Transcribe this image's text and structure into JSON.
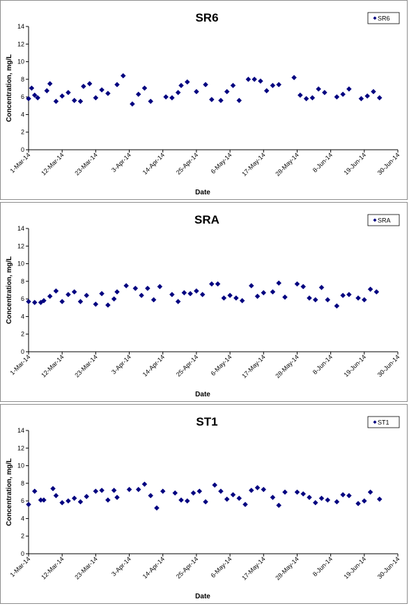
{
  "chart_data": [
    {
      "type": "scatter",
      "title": "SR6",
      "xlabel": "Date",
      "ylabel": "Concentration, mg/L",
      "ylim": [
        0,
        14
      ],
      "yticks": [
        "0",
        "2",
        "4",
        "6",
        "8",
        "10",
        "12",
        "14"
      ],
      "xticks": [
        "1-Mar-14",
        "12-Mar-14",
        "23-Mar-14",
        "3-Apr-14",
        "14-Apr-14",
        "25-Apr-14",
        "6-May-14",
        "17-May-14",
        "28-May-14",
        "8-Jun-14",
        "19-Jun-14",
        "30-Jun-14"
      ],
      "legend_position": "top-right",
      "marker_color": "#000080",
      "series": [
        {
          "name": "SR6",
          "points": [
            [
              "2014-03-01",
              5.8
            ],
            [
              "2014-03-02",
              7.0
            ],
            [
              "2014-03-03",
              6.2
            ],
            [
              "2014-03-04",
              5.9
            ],
            [
              "2014-03-07",
              6.7
            ],
            [
              "2014-03-08",
              7.5
            ],
            [
              "2014-03-10",
              5.5
            ],
            [
              "2014-03-12",
              6.1
            ],
            [
              "2014-03-14",
              6.5
            ],
            [
              "2014-03-16",
              5.6
            ],
            [
              "2014-03-18",
              5.5
            ],
            [
              "2014-03-19",
              7.2
            ],
            [
              "2014-03-21",
              7.5
            ],
            [
              "2014-03-23",
              5.9
            ],
            [
              "2014-03-25",
              6.8
            ],
            [
              "2014-03-27",
              6.4
            ],
            [
              "2014-03-30",
              7.4
            ],
            [
              "2014-04-01",
              8.4
            ],
            [
              "2014-04-04",
              5.2
            ],
            [
              "2014-04-06",
              6.3
            ],
            [
              "2014-04-08",
              7.0
            ],
            [
              "2014-04-10",
              5.5
            ],
            [
              "2014-04-15",
              6.0
            ],
            [
              "2014-04-17",
              5.9
            ],
            [
              "2014-04-19",
              6.5
            ],
            [
              "2014-04-20",
              7.3
            ],
            [
              "2014-04-22",
              7.7
            ],
            [
              "2014-04-25",
              6.6
            ],
            [
              "2014-04-28",
              7.4
            ],
            [
              "2014-04-30",
              5.7
            ],
            [
              "2014-05-03",
              5.6
            ],
            [
              "2014-05-05",
              6.6
            ],
            [
              "2014-05-07",
              7.3
            ],
            [
              "2014-05-09",
              5.6
            ],
            [
              "2014-05-12",
              8.0
            ],
            [
              "2014-05-14",
              8.0
            ],
            [
              "2014-05-16",
              7.8
            ],
            [
              "2014-05-18",
              6.7
            ],
            [
              "2014-05-20",
              7.3
            ],
            [
              "2014-05-22",
              7.4
            ],
            [
              "2014-05-27",
              8.2
            ],
            [
              "2014-05-29",
              6.2
            ],
            [
              "2014-05-31",
              5.8
            ],
            [
              "2014-06-02",
              5.9
            ],
            [
              "2014-06-04",
              6.9
            ],
            [
              "2014-06-06",
              6.5
            ],
            [
              "2014-06-10",
              6.0
            ],
            [
              "2014-06-12",
              6.3
            ],
            [
              "2014-06-14",
              6.9
            ],
            [
              "2014-06-18",
              5.8
            ],
            [
              "2014-06-20",
              6.1
            ],
            [
              "2014-06-22",
              6.6
            ],
            [
              "2014-06-24",
              5.9
            ]
          ]
        }
      ]
    },
    {
      "type": "scatter",
      "title": "SRA",
      "xlabel": "Date",
      "ylabel": "Concentration, mg/L",
      "ylim": [
        0,
        14
      ],
      "yticks": [
        "0",
        "2",
        "4",
        "6",
        "8",
        "10",
        "12",
        "14"
      ],
      "xticks": [
        "1-Mar-14",
        "12-Mar-14",
        "23-Mar-14",
        "3-Apr-14",
        "14-Apr-14",
        "25-Apr-14",
        "6-May-14",
        "17-May-14",
        "28-May-14",
        "8-Jun-14",
        "19-Jun-14",
        "30-Jun-14"
      ],
      "legend_position": "top-right",
      "marker_color": "#000080",
      "series": [
        {
          "name": "SRA",
          "points": [
            [
              "2014-03-01",
              5.7
            ],
            [
              "2014-03-03",
              5.6
            ],
            [
              "2014-03-05",
              5.6
            ],
            [
              "2014-03-06",
              5.8
            ],
            [
              "2014-03-08",
              6.3
            ],
            [
              "2014-03-10",
              6.9
            ],
            [
              "2014-03-12",
              5.7
            ],
            [
              "2014-03-14",
              6.5
            ],
            [
              "2014-03-16",
              6.8
            ],
            [
              "2014-03-18",
              5.7
            ],
            [
              "2014-03-20",
              6.4
            ],
            [
              "2014-03-23",
              5.4
            ],
            [
              "2014-03-25",
              6.6
            ],
            [
              "2014-03-27",
              5.3
            ],
            [
              "2014-03-29",
              6.0
            ],
            [
              "2014-03-30",
              6.8
            ],
            [
              "2014-04-02",
              7.5
            ],
            [
              "2014-04-05",
              7.2
            ],
            [
              "2014-04-07",
              6.4
            ],
            [
              "2014-04-09",
              7.2
            ],
            [
              "2014-04-11",
              5.9
            ],
            [
              "2014-04-13",
              7.4
            ],
            [
              "2014-04-17",
              6.5
            ],
            [
              "2014-04-19",
              5.7
            ],
            [
              "2014-04-21",
              6.7
            ],
            [
              "2014-04-23",
              6.6
            ],
            [
              "2014-04-25",
              6.9
            ],
            [
              "2014-04-27",
              6.5
            ],
            [
              "2014-04-30",
              7.7
            ],
            [
              "2014-05-02",
              7.7
            ],
            [
              "2014-05-04",
              6.1
            ],
            [
              "2014-05-06",
              6.4
            ],
            [
              "2014-05-08",
              6.1
            ],
            [
              "2014-05-10",
              5.8
            ],
            [
              "2014-05-13",
              7.5
            ],
            [
              "2014-05-15",
              6.3
            ],
            [
              "2014-05-17",
              6.7
            ],
            [
              "2014-05-20",
              6.8
            ],
            [
              "2014-05-22",
              7.8
            ],
            [
              "2014-05-24",
              6.2
            ],
            [
              "2014-05-28",
              7.7
            ],
            [
              "2014-05-30",
              7.4
            ],
            [
              "2014-06-01",
              6.1
            ],
            [
              "2014-06-03",
              5.9
            ],
            [
              "2014-06-05",
              7.3
            ],
            [
              "2014-06-07",
              5.9
            ],
            [
              "2014-06-10",
              5.2
            ],
            [
              "2014-06-12",
              6.4
            ],
            [
              "2014-06-14",
              6.5
            ],
            [
              "2014-06-17",
              6.1
            ],
            [
              "2014-06-19",
              5.9
            ],
            [
              "2014-06-21",
              7.1
            ],
            [
              "2014-06-23",
              6.8
            ]
          ]
        }
      ]
    },
    {
      "type": "scatter",
      "title": "ST1",
      "xlabel": "Date",
      "ylabel": "Concentration, mg/L",
      "ylim": [
        0,
        14
      ],
      "yticks": [
        "0",
        "2",
        "4",
        "6",
        "8",
        "10",
        "12",
        "14"
      ],
      "xticks": [
        "1-Mar-14",
        "12-Mar-14",
        "23-Mar-14",
        "3-Apr-14",
        "14-Apr-14",
        "25-Apr-14",
        "6-May-14",
        "17-May-14",
        "28-May-14",
        "8-Jun-14",
        "19-Jun-14",
        "30-Jun-14"
      ],
      "legend_position": "top-right",
      "marker_color": "#000080",
      "series": [
        {
          "name": "ST1",
          "points": [
            [
              "2014-03-01",
              5.6
            ],
            [
              "2014-03-03",
              7.1
            ],
            [
              "2014-03-05",
              6.1
            ],
            [
              "2014-03-06",
              6.1
            ],
            [
              "2014-03-09",
              7.4
            ],
            [
              "2014-03-10",
              6.6
            ],
            [
              "2014-03-12",
              5.8
            ],
            [
              "2014-03-14",
              6.0
            ],
            [
              "2014-03-16",
              6.3
            ],
            [
              "2014-03-18",
              5.9
            ],
            [
              "2014-03-20",
              6.5
            ],
            [
              "2014-03-23",
              7.1
            ],
            [
              "2014-03-25",
              7.2
            ],
            [
              "2014-03-27",
              6.1
            ],
            [
              "2014-03-29",
              7.2
            ],
            [
              "2014-03-30",
              6.4
            ],
            [
              "2014-04-03",
              7.3
            ],
            [
              "2014-04-06",
              7.3
            ],
            [
              "2014-04-08",
              7.9
            ],
            [
              "2014-04-10",
              6.6
            ],
            [
              "2014-04-12",
              5.2
            ],
            [
              "2014-04-14",
              7.1
            ],
            [
              "2014-04-18",
              6.9
            ],
            [
              "2014-04-20",
              6.1
            ],
            [
              "2014-04-22",
              6.0
            ],
            [
              "2014-04-24",
              6.9
            ],
            [
              "2014-04-26",
              7.1
            ],
            [
              "2014-04-28",
              5.9
            ],
            [
              "2014-05-01",
              7.8
            ],
            [
              "2014-05-03",
              7.1
            ],
            [
              "2014-05-05",
              6.2
            ],
            [
              "2014-05-07",
              6.7
            ],
            [
              "2014-05-09",
              6.3
            ],
            [
              "2014-05-11",
              5.6
            ],
            [
              "2014-05-13",
              7.2
            ],
            [
              "2014-05-15",
              7.5
            ],
            [
              "2014-05-17",
              7.3
            ],
            [
              "2014-05-20",
              6.4
            ],
            [
              "2014-05-22",
              5.5
            ],
            [
              "2014-05-24",
              7.0
            ],
            [
              "2014-05-28",
              7.0
            ],
            [
              "2014-05-30",
              6.8
            ],
            [
              "2014-06-01",
              6.4
            ],
            [
              "2014-06-03",
              5.8
            ],
            [
              "2014-06-05",
              6.3
            ],
            [
              "2014-06-07",
              6.1
            ],
            [
              "2014-06-10",
              5.9
            ],
            [
              "2014-06-12",
              6.7
            ],
            [
              "2014-06-14",
              6.6
            ],
            [
              "2014-06-17",
              5.7
            ],
            [
              "2014-06-19",
              6.0
            ],
            [
              "2014-06-21",
              7.0
            ],
            [
              "2014-06-24",
              6.2
            ]
          ]
        }
      ]
    }
  ]
}
